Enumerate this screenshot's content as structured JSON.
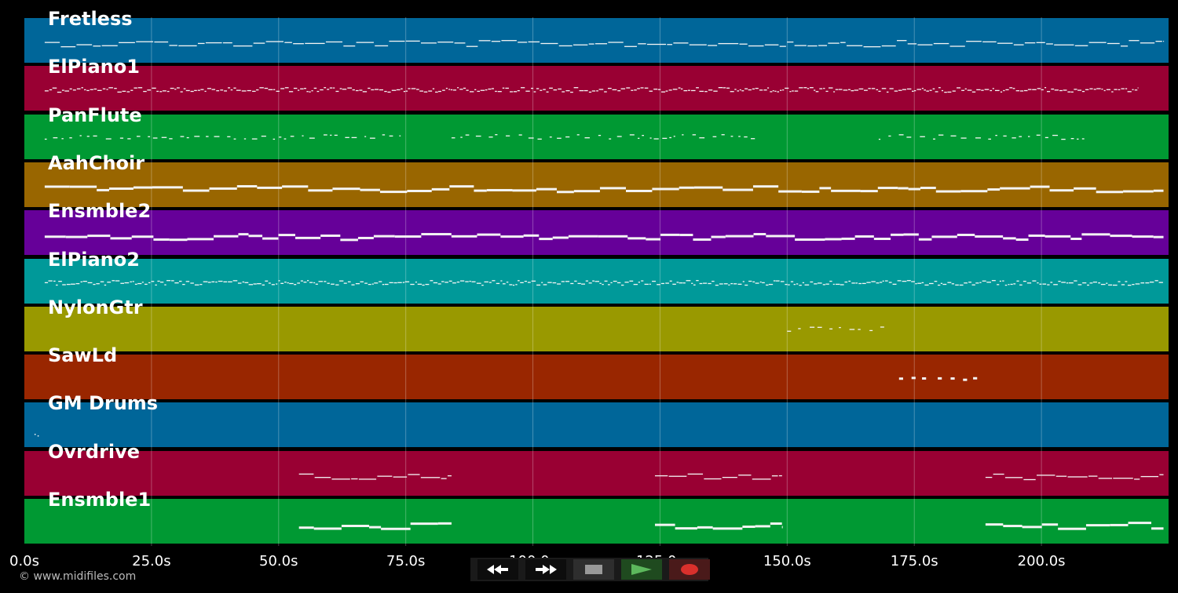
{
  "timeline": {
    "duration_s": 225,
    "ticks": [
      "0.0s",
      "25.0s",
      "50.0s",
      "75.0s",
      "100.0s",
      "125.0s",
      "150.0s",
      "175.0s",
      "200.0s"
    ],
    "tick_values": [
      0,
      25,
      50,
      75,
      100,
      125,
      150,
      175,
      200
    ]
  },
  "tracks": [
    {
      "name": "Fretless",
      "color": "#006699",
      "note_style": "thin",
      "segments": [
        [
          4,
          224
        ]
      ]
    },
    {
      "name": "ElPiano1",
      "color": "#990033",
      "note_style": "dotted",
      "segments": [
        [
          4,
          219
        ]
      ]
    },
    {
      "name": "PanFlute",
      "color": "#009933",
      "note_style": "sparse",
      "segments": [
        [
          4,
          74
        ],
        [
          84,
          144
        ],
        [
          168,
          209
        ]
      ]
    },
    {
      "name": "AahChoir",
      "color": "#996600",
      "note_style": "thick",
      "segments": [
        [
          4,
          224
        ]
      ]
    },
    {
      "name": "Ensmble2",
      "color": "#660099",
      "note_style": "thick",
      "segments": [
        [
          4,
          224
        ]
      ]
    },
    {
      "name": "ElPiano2",
      "color": "#009999",
      "note_style": "dotted",
      "segments": [
        [
          4,
          224
        ]
      ]
    },
    {
      "name": "NylonGtr",
      "color": "#999900",
      "note_style": "sparse",
      "segments": [
        [
          150,
          170
        ]
      ]
    },
    {
      "name": "SawLd",
      "color": "#992600",
      "note_style": "dashes",
      "segments": [
        [
          172,
          188
        ]
      ]
    },
    {
      "name": "GM Drums",
      "color": "#006699",
      "note_style": "none",
      "segments": []
    },
    {
      "name": "Ovrdrive",
      "color": "#990033",
      "note_style": "thin",
      "segments": [
        [
          54,
          84
        ],
        [
          124,
          149
        ],
        [
          189,
          224
        ]
      ]
    },
    {
      "name": "Ensmble1",
      "color": "#009933",
      "note_style": "thick",
      "segments": [
        [
          54,
          84
        ],
        [
          124,
          149
        ],
        [
          189,
          224
        ]
      ]
    }
  ],
  "copyright": "© www.midifiles.com",
  "transport": {
    "rewind": "rewind-icon",
    "fast_forward": "fast-forward-icon",
    "stop": "stop-icon",
    "play": "play-icon",
    "record": "record-icon",
    "play_color": "#5cb85c",
    "record_color": "#d9302c"
  }
}
